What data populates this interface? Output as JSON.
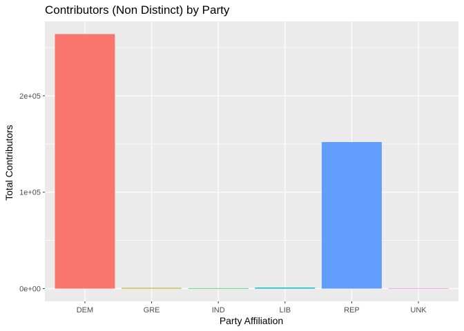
{
  "chart_data": {
    "type": "bar",
    "title": "Contributors (Non Distinct) by Party",
    "xlabel": "Party Affiliation",
    "ylabel": "Total Contributors",
    "categories": [
      "DEM",
      "GRE",
      "IND",
      "LIB",
      "REP",
      "UNK"
    ],
    "values": [
      264000,
      700,
      150,
      1100,
      152000,
      100
    ],
    "colors": [
      "#F8766D",
      "#B79F00",
      "#00BA38",
      "#00BFC4",
      "#619CFF",
      "#F564E3"
    ],
    "ylim": [
      -13200,
      277200
    ],
    "y_ticks": [
      0,
      100000,
      200000
    ],
    "y_tick_labels": [
      "0e+00",
      "1e+05",
      "2e+05"
    ],
    "grid": true,
    "legend": "none",
    "panel_background": "#EBEBEB",
    "grid_color": "#FFFFFF"
  }
}
